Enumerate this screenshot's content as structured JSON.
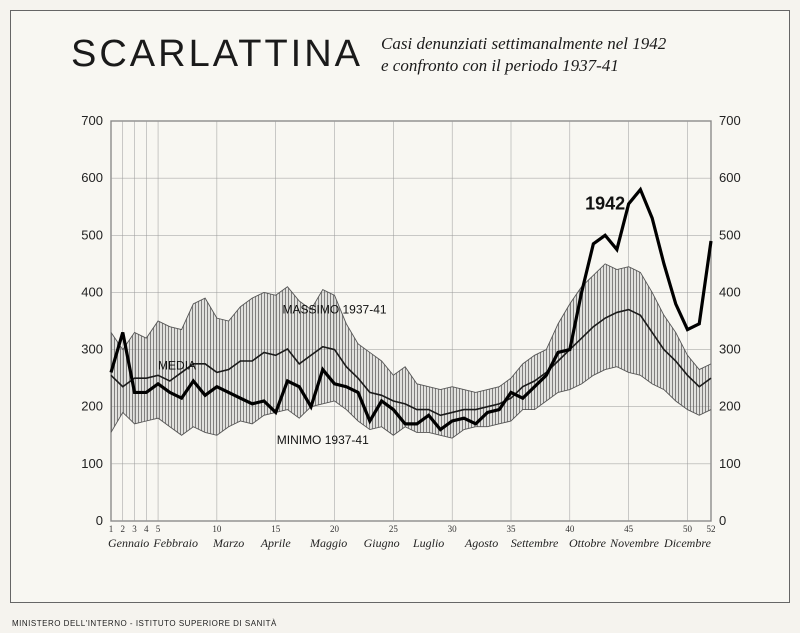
{
  "title": "SCARLATTINA",
  "subtitle_line1": "Casi denunziati settimanalmente nel 1942",
  "subtitle_line2": "e confronto con il periodo 1937-41",
  "footer": "MINISTERO DELL'INTERNO - ISTITUTO SUPERIORE DI SANITÀ",
  "chart": {
    "type": "line_with_band",
    "ylim": [
      0,
      700
    ],
    "ytick_step": 100,
    "yticks": [
      0,
      100,
      200,
      300,
      400,
      500,
      600,
      700
    ],
    "xlim": [
      1,
      52
    ],
    "week_ticks": [
      1,
      2,
      3,
      4,
      5,
      10,
      15,
      20,
      25,
      30,
      35,
      40,
      45,
      50,
      52
    ],
    "months": [
      "Gennaio",
      "Febbraio",
      "Marzo",
      "Aprile",
      "Maggio",
      "Giugno",
      "Luglio",
      "Agosto",
      "Settembre",
      "Ottobre",
      "Novembre",
      "Dicembre"
    ],
    "labels": {
      "massimo": "MASSIMO 1937-41",
      "minimo": "MINIMO 1937-41",
      "media": "MEDIA",
      "year": "1942"
    },
    "colors": {
      "background": "#f8f7f2",
      "grid": "#666666",
      "grid_minor": "#999999",
      "band_fill": "#b8b8b8",
      "band_hatch": "#555555",
      "media_line": "#1a1a1a",
      "year_line": "#000000"
    },
    "line_widths": {
      "media": 1.6,
      "year": 3.2,
      "grid": 0.5
    },
    "massimo_1937_41": [
      330,
      300,
      330,
      320,
      350,
      340,
      335,
      380,
      390,
      355,
      350,
      375,
      390,
      400,
      395,
      410,
      385,
      370,
      405,
      395,
      345,
      310,
      295,
      280,
      255,
      270,
      240,
      235,
      230,
      235,
      230,
      225,
      230,
      235,
      250,
      275,
      290,
      300,
      345,
      380,
      410,
      430,
      450,
      440,
      445,
      435,
      400,
      360,
      330,
      290,
      265,
      275
    ],
    "minimo_1937_41": [
      155,
      190,
      170,
      175,
      180,
      165,
      150,
      165,
      155,
      150,
      165,
      175,
      170,
      185,
      190,
      195,
      180,
      200,
      205,
      210,
      195,
      175,
      160,
      165,
      150,
      165,
      155,
      155,
      150,
      145,
      160,
      165,
      165,
      170,
      175,
      195,
      195,
      210,
      225,
      230,
      240,
      255,
      265,
      270,
      260,
      255,
      240,
      230,
      210,
      195,
      185,
      195
    ],
    "media_1937_41": [
      255,
      235,
      250,
      250,
      255,
      245,
      260,
      275,
      275,
      260,
      265,
      280,
      280,
      295,
      290,
      301,
      275,
      290,
      305,
      300,
      270,
      250,
      225,
      220,
      210,
      205,
      195,
      195,
      185,
      190,
      195,
      195,
      200,
      205,
      215,
      235,
      245,
      260,
      280,
      300,
      320,
      340,
      355,
      365,
      370,
      360,
      330,
      300,
      280,
      255,
      235,
      250
    ],
    "year_1942": [
      260,
      330,
      225,
      225,
      240,
      225,
      215,
      245,
      220,
      235,
      225,
      215,
      205,
      210,
      190,
      245,
      235,
      200,
      265,
      240,
      235,
      225,
      175,
      210,
      195,
      170,
      170,
      185,
      160,
      175,
      180,
      170,
      190,
      195,
      225,
      215,
      235,
      255,
      295,
      300,
      400,
      485,
      500,
      475,
      555,
      580,
      530,
      450,
      380,
      335,
      345,
      490
    ]
  }
}
